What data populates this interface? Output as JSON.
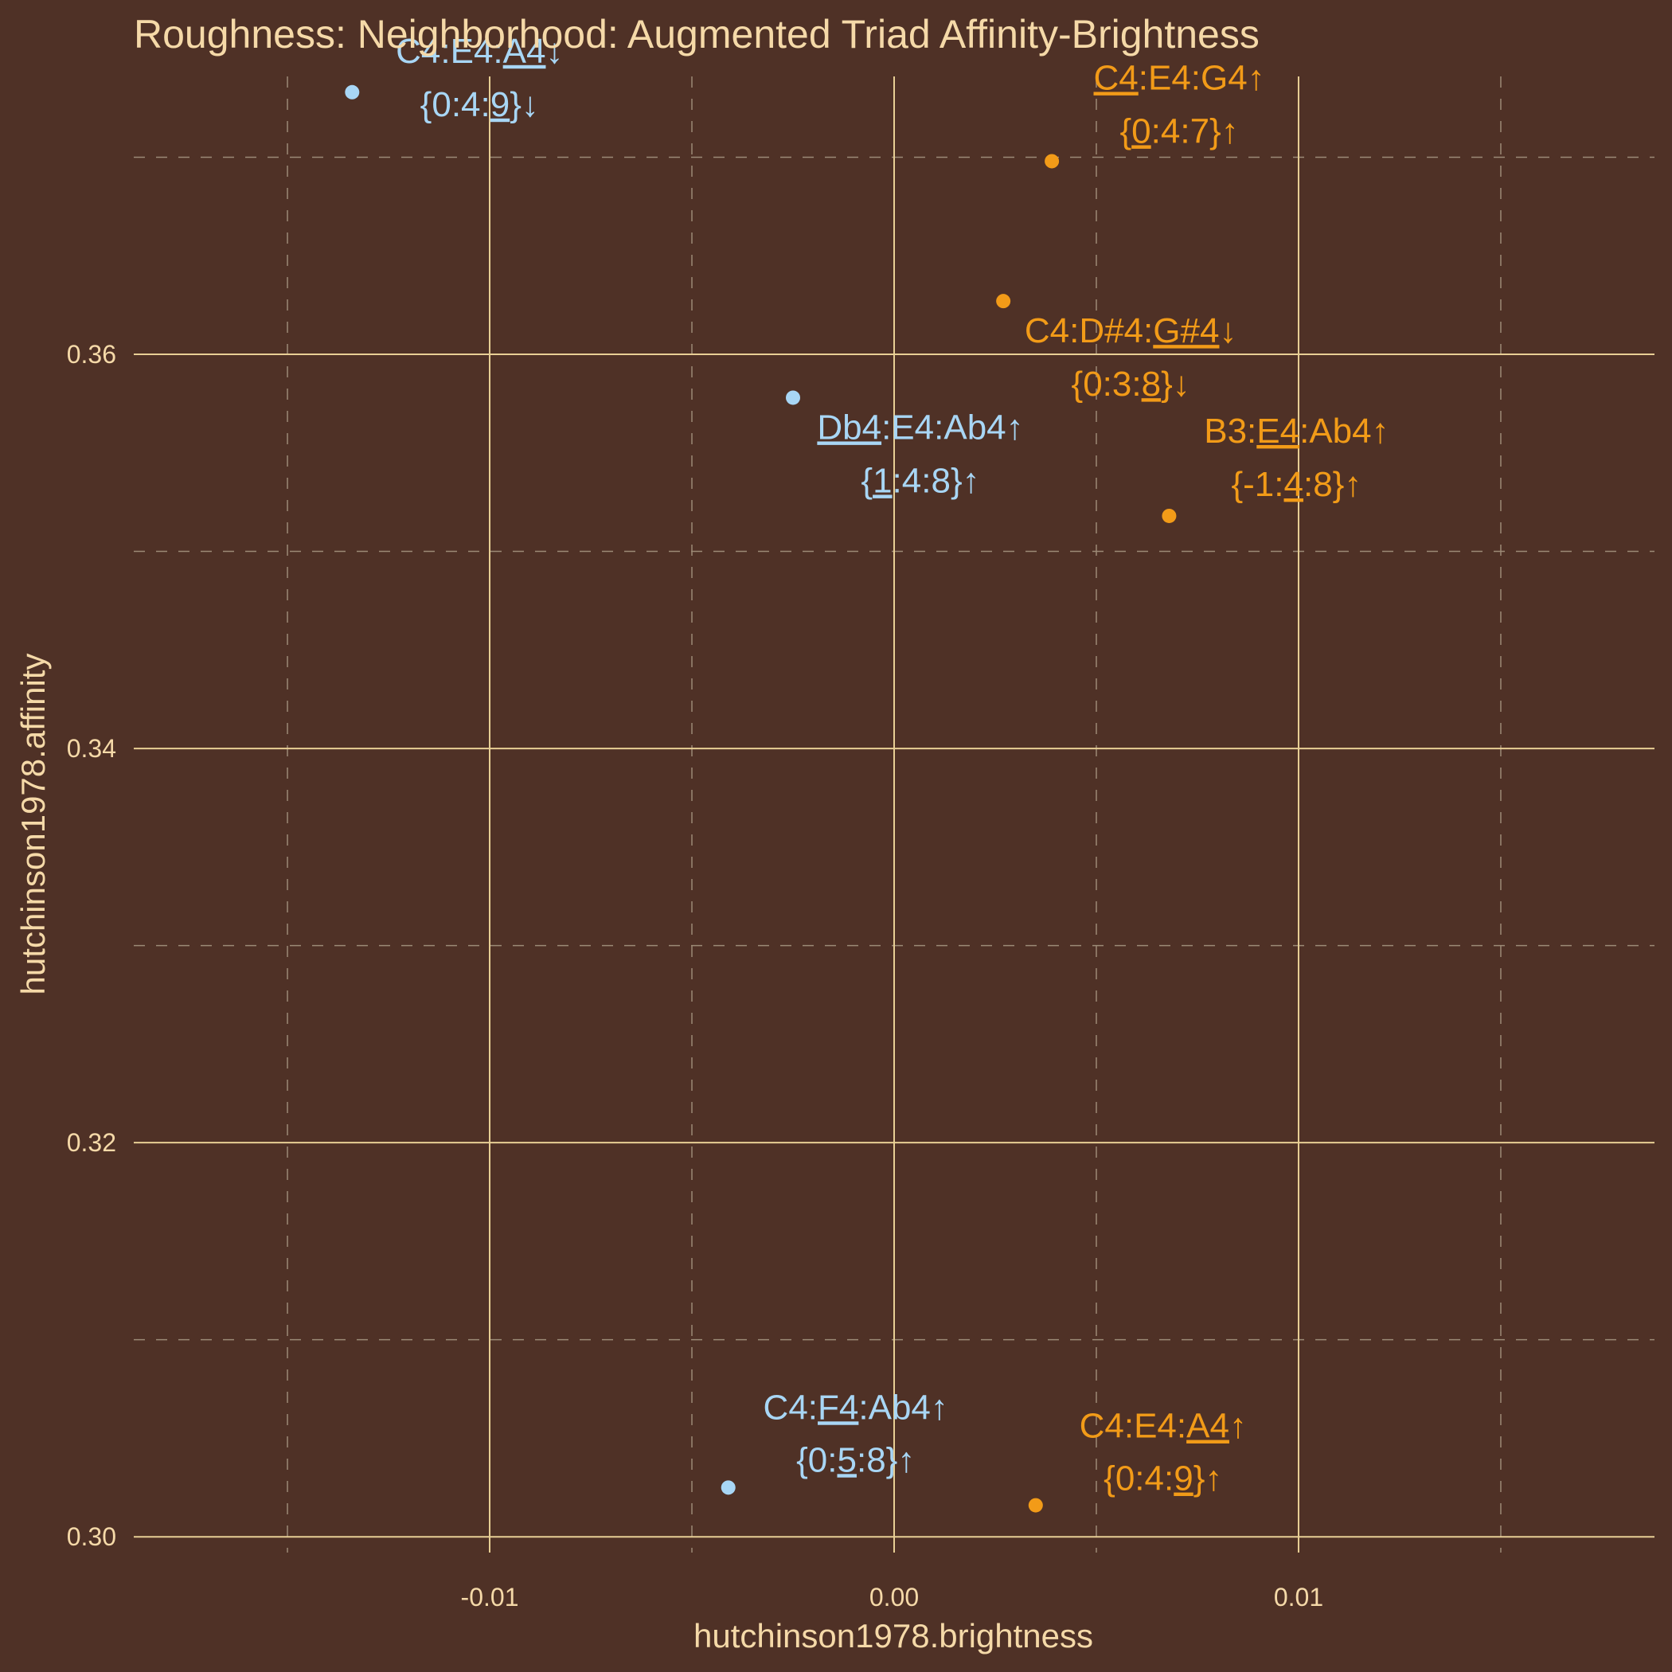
{
  "chart_data": {
    "type": "scatter",
    "title": "Roughness: Neighborhood: Augmented Triad Affinity-Brightness",
    "xlabel": "hutchinson1978.brightness",
    "ylabel": "hutchinson1978.affinity",
    "xlim": [
      -0.0188,
      0.0188
    ],
    "ylim": [
      0.2992,
      0.3741
    ],
    "x_ticks": [
      {
        "value": -0.01,
        "label": "-0.01"
      },
      {
        "value": 0.0,
        "label": "0.00"
      },
      {
        "value": 0.01,
        "label": "0.01"
      }
    ],
    "y_ticks": [
      {
        "value": 0.3,
        "label": "0.30"
      },
      {
        "value": 0.32,
        "label": "0.32"
      },
      {
        "value": 0.34,
        "label": "0.34"
      },
      {
        "value": 0.36,
        "label": "0.36"
      }
    ],
    "x_minor": [
      -0.015,
      -0.005,
      0.005,
      0.015
    ],
    "y_minor": [
      0.31,
      0.33,
      0.35,
      0.37
    ],
    "grid": true,
    "colors": {
      "blue": "#a8d6f5",
      "orange": "#f29b18"
    },
    "points": [
      {
        "x": -0.0134,
        "y": 0.3733,
        "color": "blue",
        "label1": [
          {
            "t": "C4:E4:"
          },
          {
            "t": "A4",
            "u": true
          },
          {
            "t": "↓"
          }
        ],
        "label2": [
          {
            "t": "{0:4:"
          },
          {
            "t": "9",
            "u": true
          },
          {
            "t": "}↓"
          }
        ]
      },
      {
        "x": 0.0039,
        "y": 0.3698,
        "color": "orange",
        "label1": [
          {
            "t": "C4",
            "u": true
          },
          {
            "t": ":E4:G4↑"
          }
        ],
        "label2": [
          {
            "t": "{"
          },
          {
            "t": "0",
            "u": true
          },
          {
            "t": ":4:7}↑"
          }
        ]
      },
      {
        "x": 0.0027,
        "y": 0.3627,
        "color": "orange",
        "label1": [
          {
            "t": "C4:D#4:"
          },
          {
            "t": "G#4",
            "u": true
          },
          {
            "t": "↓"
          }
        ],
        "label2": [
          {
            "t": "{0:3:"
          },
          {
            "t": "8",
            "u": true
          },
          {
            "t": "}↓"
          }
        ]
      },
      {
        "x": -0.0025,
        "y": 0.3578,
        "color": "blue",
        "label1": [
          {
            "t": "Db4",
            "u": true
          },
          {
            "t": ":E4:Ab4↑"
          }
        ],
        "label2": [
          {
            "t": "{"
          },
          {
            "t": "1",
            "u": true
          },
          {
            "t": ":4:8}↑"
          }
        ]
      },
      {
        "x": 0.0068,
        "y": 0.3518,
        "color": "orange",
        "label1": [
          {
            "t": "B3:"
          },
          {
            "t": "E4",
            "u": true
          },
          {
            "t": ":Ab4↑"
          }
        ],
        "label2": [
          {
            "t": "{-1:"
          },
          {
            "t": "4",
            "u": true
          },
          {
            "t": ":8}↑"
          }
        ]
      },
      {
        "x": -0.0041,
        "y": 0.3025,
        "color": "blue",
        "label1": [
          {
            "t": "C4:"
          },
          {
            "t": "F4",
            "u": true
          },
          {
            "t": ":Ab4↑"
          }
        ],
        "label2": [
          {
            "t": "{0:"
          },
          {
            "t": "5",
            "u": true
          },
          {
            "t": ":8}↑"
          }
        ]
      },
      {
        "x": 0.0035,
        "y": 0.3016,
        "color": "orange",
        "label1": [
          {
            "t": "C4:E4:"
          },
          {
            "t": "A4",
            "u": true
          },
          {
            "t": "↑"
          }
        ],
        "label2": [
          {
            "t": "{0:4:"
          },
          {
            "t": "9",
            "u": true
          },
          {
            "t": "}↑"
          }
        ]
      }
    ]
  }
}
